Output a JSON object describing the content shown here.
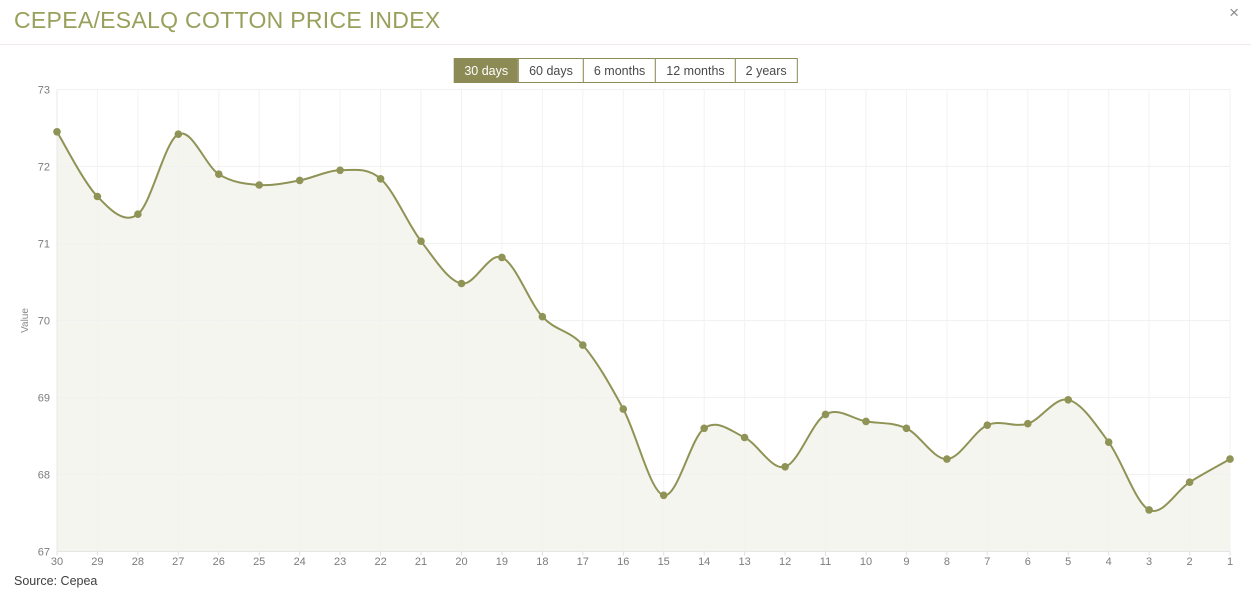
{
  "header": {
    "title": "CEPEA/ESALQ COTTON PRICE INDEX",
    "close_label": "×"
  },
  "range_buttons": [
    {
      "label": "30 days",
      "active": true
    },
    {
      "label": "60 days",
      "active": false
    },
    {
      "label": "6 months",
      "active": false
    },
    {
      "label": "12 months",
      "active": false
    },
    {
      "label": "2 years",
      "active": false
    }
  ],
  "source_text": "Source: Cepea",
  "colors": {
    "accent": "#8c8b55",
    "title_text": "#99a05c",
    "line": "#8f9355",
    "marker": "#8f9355",
    "area_fill": "rgba(141,146,82,0.09)",
    "axis_text": "#7c7c7c",
    "grid_horizontal": "#f1f1f1",
    "grid_vertical": "#f5f2ee",
    "axis_line": "#e5e5e5"
  },
  "chart_data": {
    "type": "area",
    "title": "CEPEA/ESALQ COTTON PRICE INDEX",
    "xlabel": "",
    "ylabel": "Value",
    "x": [
      30,
      29,
      28,
      27,
      26,
      25,
      24,
      23,
      22,
      21,
      20,
      19,
      18,
      17,
      16,
      15,
      14,
      13,
      12,
      11,
      10,
      9,
      8,
      7,
      6,
      5,
      4,
      3,
      2,
      1
    ],
    "values": [
      72.45,
      71.61,
      71.38,
      72.42,
      71.9,
      71.76,
      71.82,
      71.95,
      71.84,
      71.03,
      70.48,
      70.82,
      70.05,
      69.68,
      68.85,
      67.73,
      68.6,
      68.48,
      68.1,
      68.78,
      68.69,
      68.6,
      68.2,
      68.64,
      68.66,
      68.97,
      68.42,
      67.54,
      67.9,
      68.2
    ],
    "ylim": [
      67,
      73
    ],
    "yticks": [
      67,
      68,
      69,
      70,
      71,
      72,
      73
    ],
    "grid": true,
    "legend": false,
    "smooth": true,
    "marker": "circle"
  }
}
